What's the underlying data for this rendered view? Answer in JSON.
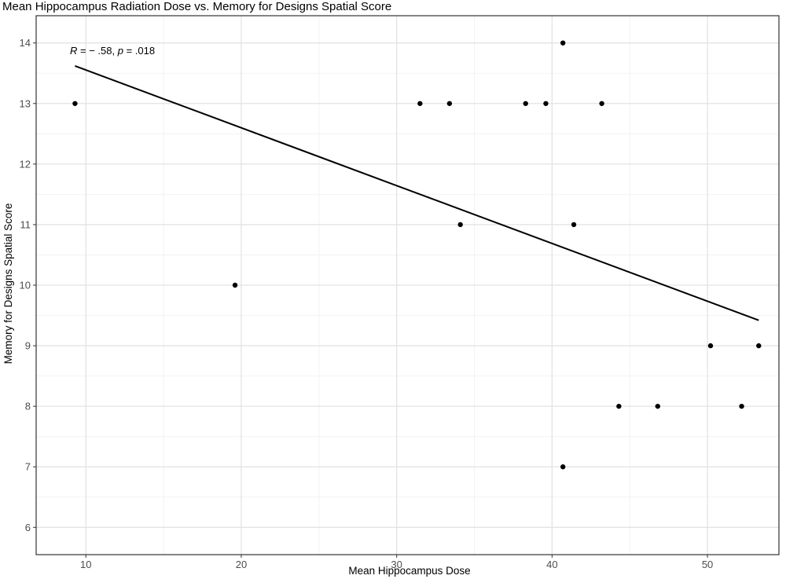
{
  "chart_data": {
    "type": "scatter",
    "title": "Mean Hippocampus Radiation Dose vs. Memory for Designs Spatial Score",
    "xlabel": "Mean Hippocampus Dose",
    "ylabel": "Memory for Designs Spatial Score",
    "xlim": [
      6.8,
      54.6
    ],
    "ylim": [
      5.55,
      14.45
    ],
    "x_ticks": [
      10,
      20,
      30,
      40,
      50
    ],
    "y_ticks": [
      6,
      7,
      8,
      9,
      10,
      11,
      12,
      13,
      14
    ],
    "grid": true,
    "points": [
      {
        "x": 9.3,
        "y": 13
      },
      {
        "x": 19.6,
        "y": 10
      },
      {
        "x": 31.5,
        "y": 13
      },
      {
        "x": 33.4,
        "y": 13
      },
      {
        "x": 34.1,
        "y": 11
      },
      {
        "x": 38.3,
        "y": 13
      },
      {
        "x": 39.6,
        "y": 13
      },
      {
        "x": 40.7,
        "y": 14
      },
      {
        "x": 40.7,
        "y": 7
      },
      {
        "x": 41.4,
        "y": 11
      },
      {
        "x": 43.2,
        "y": 13
      },
      {
        "x": 44.3,
        "y": 8
      },
      {
        "x": 46.8,
        "y": 8
      },
      {
        "x": 50.2,
        "y": 9
      },
      {
        "x": 52.2,
        "y": 8
      },
      {
        "x": 53.3,
        "y": 9
      }
    ],
    "regression_line": {
      "x": [
        9.3,
        53.3
      ],
      "y": [
        13.62,
        9.42
      ]
    },
    "annotation": {
      "r_label": "R",
      "r_value": " = − .58, ",
      "p_label": "p",
      "p_value": " = .018"
    }
  }
}
